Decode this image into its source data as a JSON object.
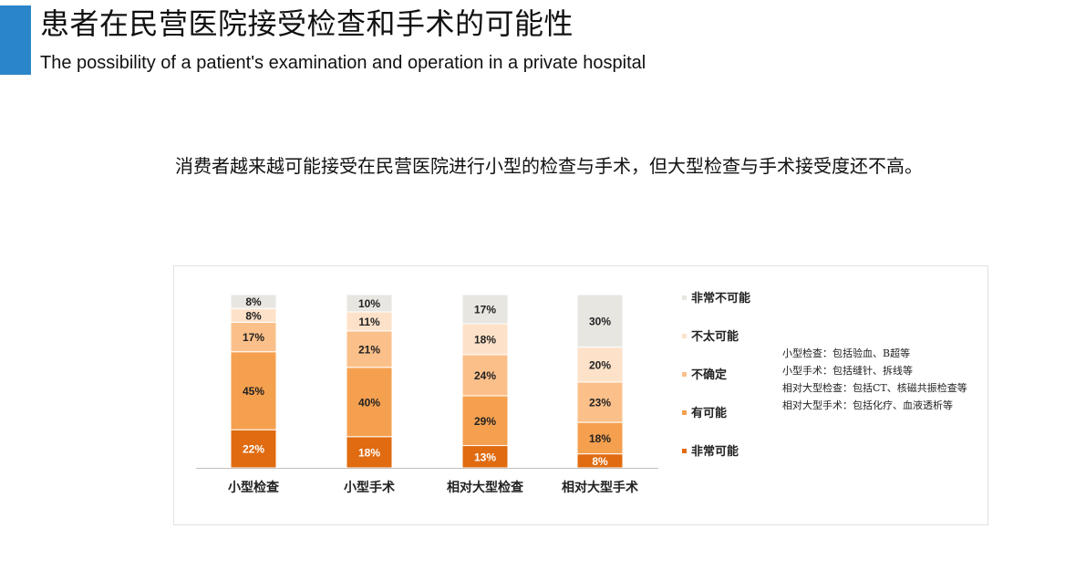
{
  "header": {
    "title_cn": "患者在民营医院接受检查和手术的可能性",
    "title_en": "The possibility of a patient's examination and operation in a private hospital"
  },
  "subtitle": "消费者越来越可能接受在民营医院进行小型的检查与手术，但大型检查与手术接受度还不高。",
  "notes": [
    "小型检查：包括验血、B超等",
    "小型手术：包括缝针、拆线等",
    "相对大型检查：包括CT、核磁共振检查等",
    "相对大型手术：包括化疗、血液透析等"
  ],
  "chart_data": {
    "type": "bar",
    "stacked": true,
    "normalized": true,
    "categories": [
      "小型检查",
      "小型手术",
      "相对大型检查",
      "相对大型手术"
    ],
    "series": [
      {
        "name": "非常可能",
        "values": [
          22,
          18,
          13,
          8
        ],
        "labels": [
          "22%",
          "18%",
          "13%",
          "8%"
        ],
        "color": "#e06b10",
        "label_color": "#ffffff"
      },
      {
        "name": "有可能",
        "values": [
          45,
          40,
          29,
          18
        ],
        "labels": [
          "45%",
          "40%",
          "29%",
          "18%"
        ],
        "color": "#f5a04f",
        "label_color": "#222222"
      },
      {
        "name": "不确定",
        "values": [
          17,
          21,
          24,
          23
        ],
        "labels": [
          "17%",
          "21%",
          "24%",
          "23%"
        ],
        "color": "#fbc08a",
        "label_color": "#222222"
      },
      {
        "name": "不太可能",
        "values": [
          8,
          11,
          18,
          20
        ],
        "labels": [
          "8%",
          "11%",
          "18%",
          "20%"
        ],
        "color": "#fde2c9",
        "label_color": "#222222"
      },
      {
        "name": "非常不可能",
        "values": [
          8,
          10,
          17,
          30
        ],
        "labels": [
          "8%",
          "10%",
          "17%",
          "30%"
        ],
        "color": "#e8e6e1",
        "label_color": "#222222"
      }
    ],
    "legend_order": [
      "非常不可能",
      "不太可能",
      "不确定",
      "有可能",
      "非常可能"
    ],
    "legend_position": "right",
    "ylim": [
      0,
      100
    ],
    "grid": false
  }
}
